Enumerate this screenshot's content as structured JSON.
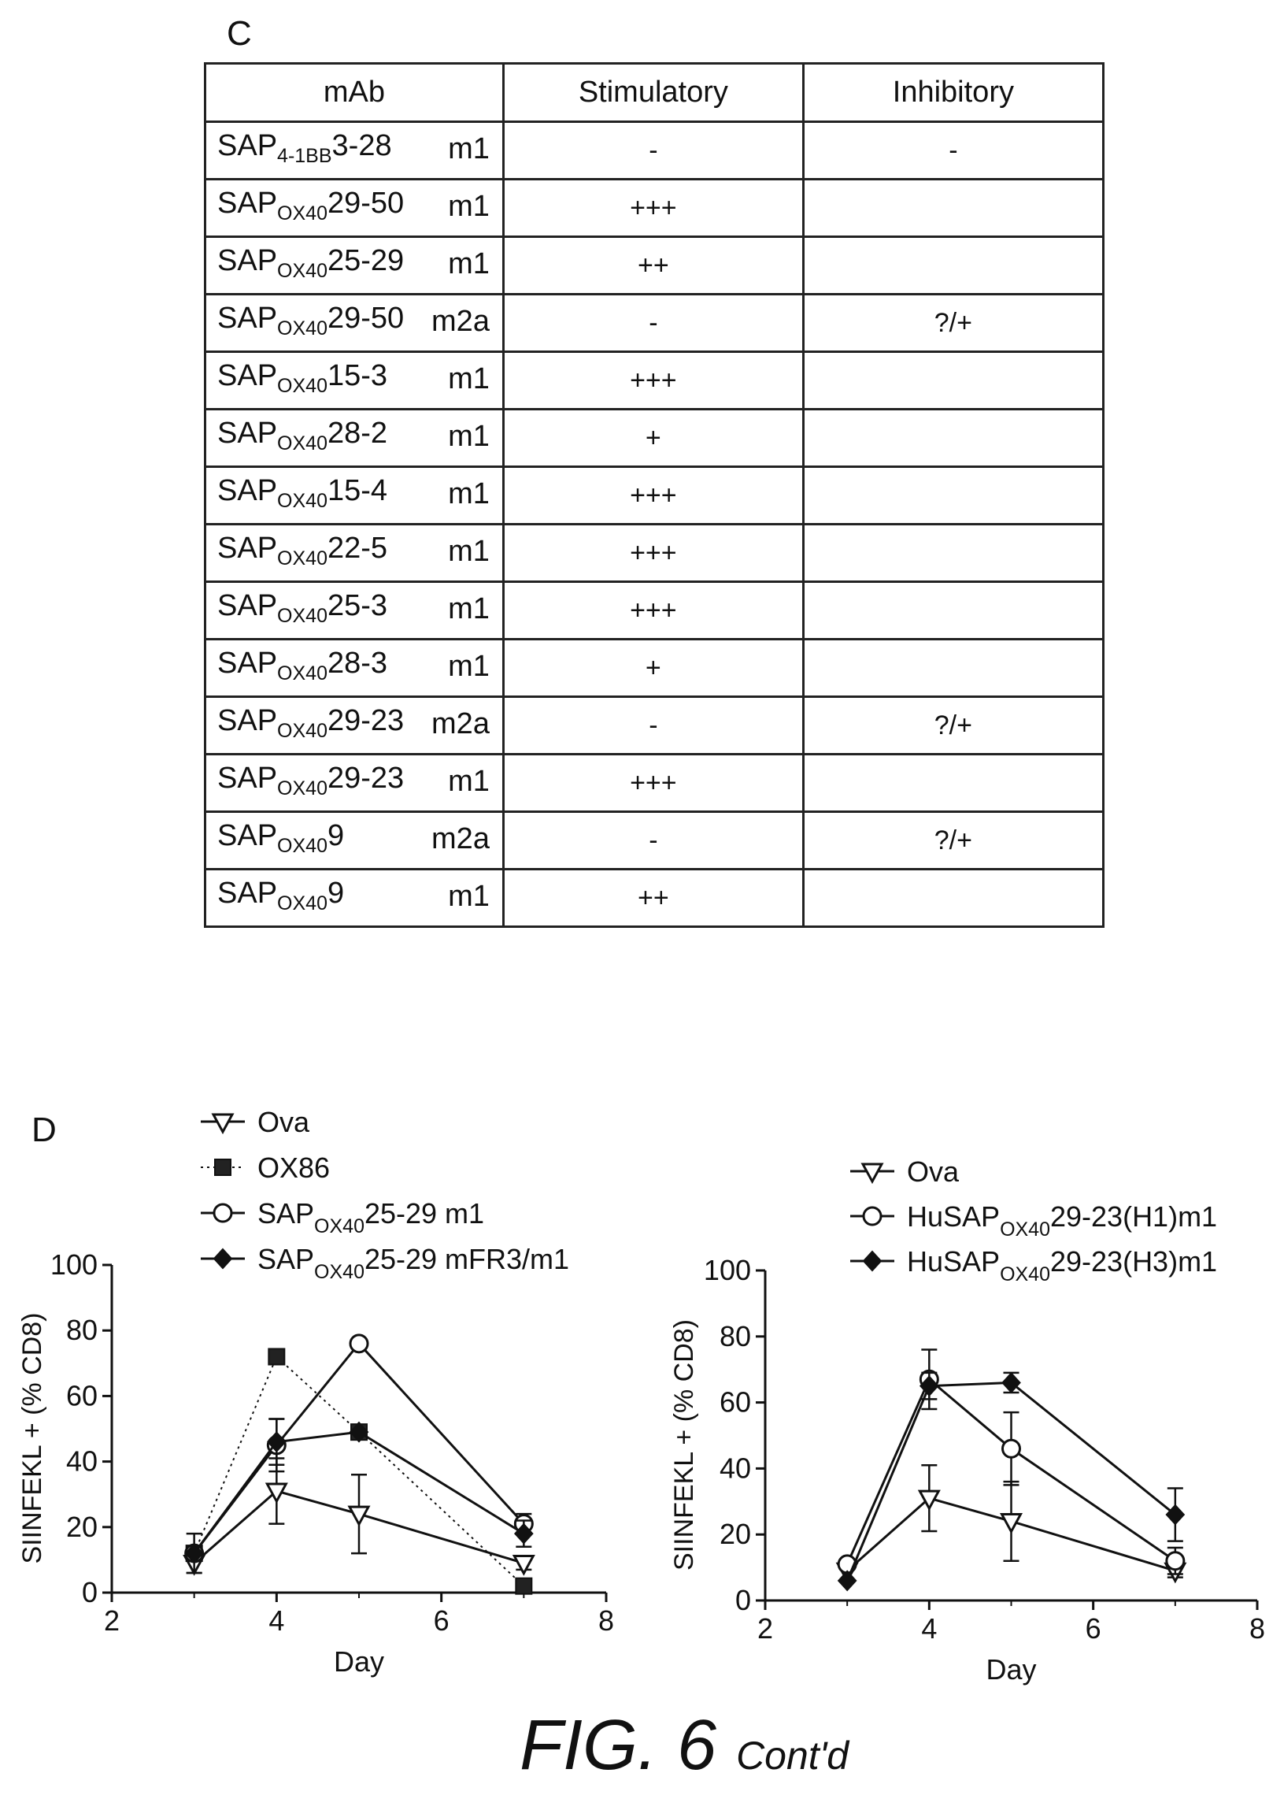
{
  "panel_c": {
    "letter": "C",
    "headers": {
      "mab": "mAb",
      "stimulatory": "Stimulatory",
      "inhibitory": "Inhibitory"
    },
    "rows": [
      {
        "prefix": "SAP",
        "sub": "4-1BB",
        "clone": "3-28",
        "isotype": "m1",
        "stimulatory": "-",
        "inhibitory": "-"
      },
      {
        "prefix": "SAP",
        "sub": "OX40",
        "clone": "29-50",
        "isotype": "m1",
        "stimulatory": "+++",
        "inhibitory": ""
      },
      {
        "prefix": "SAP",
        "sub": "OX40",
        "clone": "25-29",
        "isotype": "m1",
        "stimulatory": "++",
        "inhibitory": ""
      },
      {
        "prefix": "SAP",
        "sub": "OX40",
        "clone": "29-50",
        "isotype": "m2a",
        "stimulatory": "-",
        "inhibitory": "?/+"
      },
      {
        "prefix": "SAP",
        "sub": "OX40",
        "clone": "15-3",
        "isotype": "m1",
        "stimulatory": "+++",
        "inhibitory": ""
      },
      {
        "prefix": "SAP",
        "sub": "OX40",
        "clone": "28-2",
        "isotype": "m1",
        "stimulatory": "+",
        "inhibitory": ""
      },
      {
        "prefix": "SAP",
        "sub": "OX40",
        "clone": "15-4",
        "isotype": "m1",
        "stimulatory": "+++",
        "inhibitory": ""
      },
      {
        "prefix": "SAP",
        "sub": "OX40",
        "clone": "22-5",
        "isotype": "m1",
        "stimulatory": "+++",
        "inhibitory": ""
      },
      {
        "prefix": "SAP",
        "sub": "OX40",
        "clone": "25-3",
        "isotype": "m1",
        "stimulatory": "+++",
        "inhibitory": ""
      },
      {
        "prefix": "SAP",
        "sub": "OX40",
        "clone": "28-3",
        "isotype": "m1",
        "stimulatory": "+",
        "inhibitory": ""
      },
      {
        "prefix": "SAP",
        "sub": "OX40",
        "clone": "29-23",
        "isotype": "m2a",
        "stimulatory": "-",
        "inhibitory": "?/+"
      },
      {
        "prefix": "SAP",
        "sub": "OX40",
        "clone": "29-23",
        "isotype": "m1",
        "stimulatory": "+++",
        "inhibitory": ""
      },
      {
        "prefix": "SAP",
        "sub": "OX40",
        "clone": "9",
        "isotype": "m2a",
        "stimulatory": "-",
        "inhibitory": "?/+"
      },
      {
        "prefix": "SAP",
        "sub": "OX40",
        "clone": "9",
        "isotype": "m1",
        "stimulatory": "++",
        "inhibitory": ""
      }
    ]
  },
  "panel_d": {
    "letter": "D"
  },
  "chart_data": [
    {
      "type": "line",
      "xlabel": "Day",
      "ylabel": "SIINFEKL + (% CD8)",
      "xlim": [
        2,
        8
      ],
      "ylim": [
        0,
        100
      ],
      "xticks": [
        "2",
        "4",
        "6",
        "8"
      ],
      "yticks": [
        "0",
        "20",
        "40",
        "60",
        "80",
        "100"
      ],
      "legend_position": "top-left",
      "series": [
        {
          "name": "Ova",
          "legend_prefix": "Ova",
          "legend_sub": "",
          "legend_suffix": "",
          "marker": "triangle-down-open",
          "line": "solid",
          "x": [
            3,
            4,
            5,
            7
          ],
          "y": [
            9,
            31,
            24,
            9
          ],
          "err": [
            3,
            10,
            12,
            2
          ]
        },
        {
          "name": "OX86",
          "legend_prefix": "OX86",
          "legend_sub": "",
          "legend_suffix": "",
          "marker": "square-filled",
          "line": "dotted",
          "x": [
            3,
            4,
            5,
            7
          ],
          "y": [
            12,
            72,
            49,
            2
          ],
          "err": [
            0,
            0,
            0,
            0
          ]
        },
        {
          "name": "SAPOX4025-29 m1",
          "legend_prefix": "SAP",
          "legend_sub": "OX40",
          "legend_suffix": "25-29 m1",
          "marker": "circle-open",
          "line": "solid",
          "x": [
            3,
            4,
            5,
            7
          ],
          "y": [
            12,
            45,
            76,
            21
          ],
          "err": [
            0,
            8,
            0,
            3
          ]
        },
        {
          "name": "SAPOX4025-29 mFR3/m1",
          "legend_prefix": "SAP",
          "legend_sub": "OX40",
          "legend_suffix": "25-29 mFR3/m1",
          "marker": "diamond-filled",
          "line": "solid",
          "x": [
            3,
            4,
            5,
            7
          ],
          "y": [
            12,
            46,
            49,
            18
          ],
          "err": [
            6,
            7,
            0,
            4
          ]
        }
      ]
    },
    {
      "type": "line",
      "xlabel": "Day",
      "ylabel": "SIINFEKL + (% CD8)",
      "xlim": [
        2,
        8
      ],
      "ylim": [
        0,
        100
      ],
      "xticks": [
        "2",
        "4",
        "6",
        "8"
      ],
      "yticks": [
        "0",
        "20",
        "40",
        "60",
        "80",
        "100"
      ],
      "legend_position": "top-right",
      "series": [
        {
          "name": "Ova",
          "legend_prefix": "Ova",
          "legend_sub": "",
          "legend_suffix": "",
          "marker": "triangle-down-open",
          "line": "solid",
          "x": [
            3,
            4,
            5,
            7
          ],
          "y": [
            9,
            31,
            24,
            9
          ],
          "err": [
            3,
            10,
            12,
            2
          ]
        },
        {
          "name": "HuSAPOX4029-23(H1)m1",
          "legend_prefix": "HuSAP",
          "legend_sub": "OX40",
          "legend_suffix": "29-23(H1)m1",
          "marker": "circle-open",
          "line": "solid",
          "x": [
            3,
            4,
            5,
            7
          ],
          "y": [
            11,
            67,
            46,
            12
          ],
          "err": [
            0,
            9,
            11,
            4
          ]
        },
        {
          "name": "HuSAPOX4029-23(H3)m1",
          "legend_prefix": "HuSAP",
          "legend_sub": "OX40",
          "legend_suffix": "29-23(H3)m1",
          "marker": "diamond-filled",
          "line": "solid",
          "x": [
            3,
            4,
            5,
            7
          ],
          "y": [
            6,
            65,
            66,
            26
          ],
          "err": [
            0,
            4,
            3,
            8
          ]
        }
      ]
    }
  ],
  "caption": {
    "main": "FIG. 6",
    "suffix": "Cont'd"
  }
}
